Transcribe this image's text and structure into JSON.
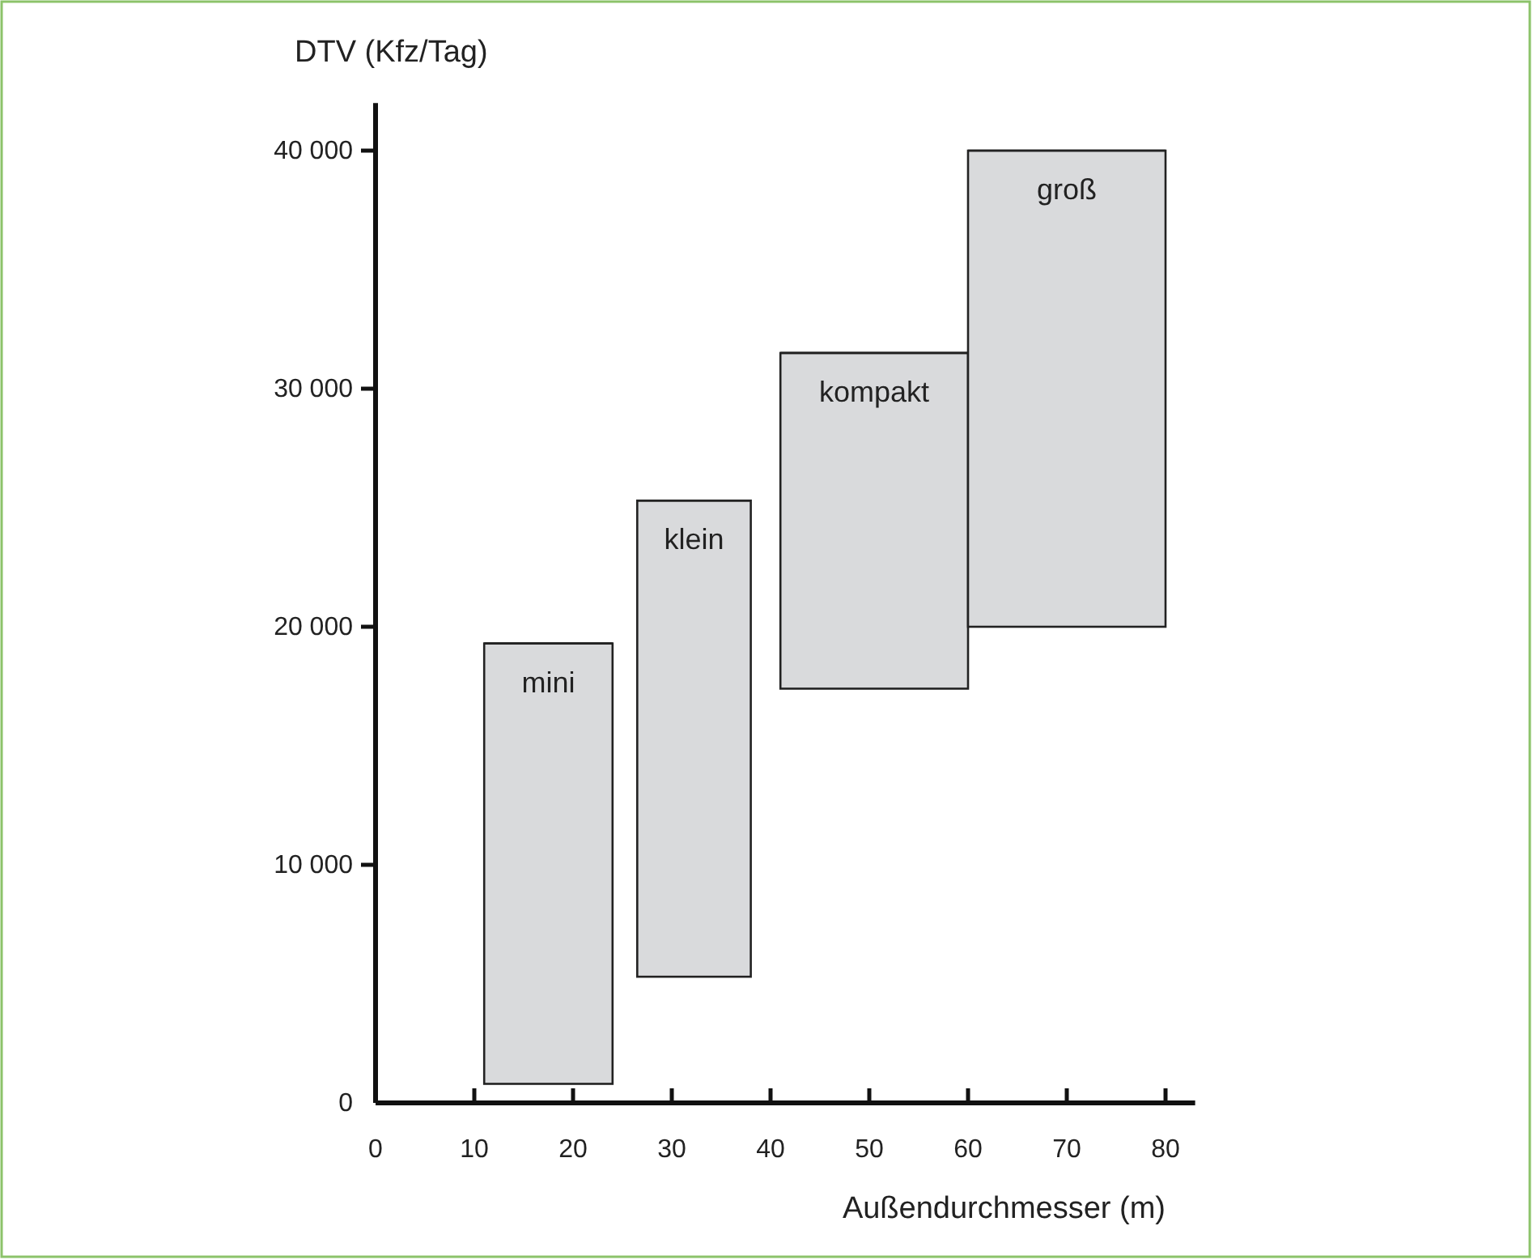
{
  "chart_data": {
    "type": "bar",
    "xlabel": "Außendurchmesser (m)",
    "ylabel": "DTV (Kfz/Tag)",
    "x": [
      17.5,
      32.25,
      50.5,
      70
    ],
    "base": [
      800,
      5300,
      17400,
      20000
    ],
    "values": [
      18500,
      20000,
      14100,
      20000
    ],
    "xerrors": [
      [
        11,
        24
      ],
      [
        26.5,
        38
      ],
      [
        41,
        60
      ],
      [
        60,
        80
      ]
    ],
    "colors": [
      "#d9dadc",
      "#d9dadc",
      "#d9dadc",
      "#d9dadc"
    ],
    "xlim": [
      0,
      83
    ],
    "xticks": [
      0,
      10,
      20,
      30,
      40,
      50,
      60,
      70,
      80
    ],
    "ylim": [
      0,
      42000
    ],
    "yticks": [
      0,
      {
        "value": 10000,
        "label": "10 000"
      },
      {
        "value": 20000,
        "label": "20 000"
      },
      {
        "value": 30000,
        "label": "30 000"
      },
      {
        "value": 40000,
        "label": "40 000"
      }
    ],
    "annotations": [
      {
        "text": "mini",
        "x": 17.5,
        "y": 19300
      },
      {
        "text": "klein",
        "x": 32.25,
        "y": 25300
      },
      {
        "text": "kompakt",
        "x": 50.5,
        "y": 31500
      },
      {
        "text": "groß",
        "x": 70,
        "y": 40000
      }
    ],
    "grid": false
  }
}
